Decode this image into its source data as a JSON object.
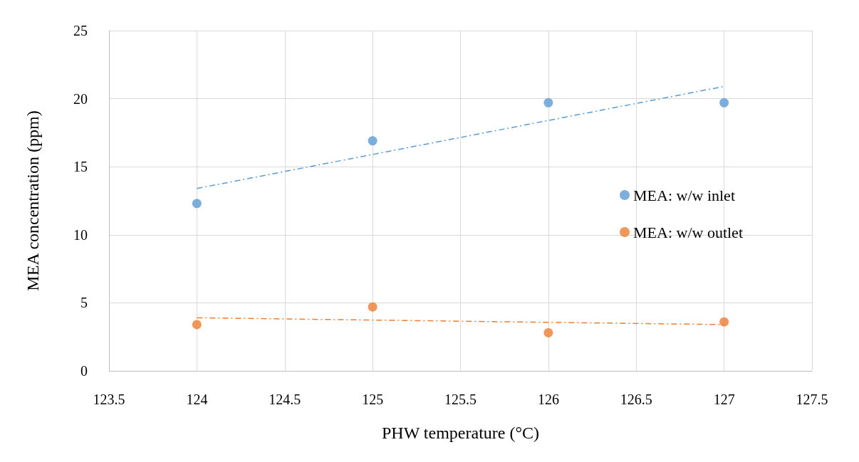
{
  "chart_data": {
    "type": "scatter",
    "xlabel": "PHW temperature (°C)",
    "ylabel": "MEA concentration (ppm)",
    "xlim": [
      123.5,
      127.5
    ],
    "xticks": [
      123.5,
      124,
      124.5,
      125,
      125.5,
      126,
      126.5,
      127,
      127.5
    ],
    "ylim": [
      0,
      25
    ],
    "yticks": [
      0,
      5,
      10,
      15,
      20,
      25
    ],
    "grid": true,
    "legend": "right",
    "marker": "circle",
    "series": [
      {
        "name": "MEA: w/w inlet",
        "color": "#5b9bd5",
        "x": [
          124,
          125,
          126,
          127
        ],
        "values": [
          12.3,
          16.9,
          19.7,
          19.7
        ]
      },
      {
        "name": "MEA: w/w outlet",
        "color": "#ed7d31",
        "x": [
          124,
          125,
          126,
          127
        ],
        "values": [
          3.4,
          4.7,
          2.8,
          3.6
        ]
      },
      {
        "type": "line",
        "color": "#5b9bd5",
        "line_style": "dashed",
        "marker": "none",
        "x": [
          124,
          127
        ],
        "values": [
          13.4,
          20.9
        ]
      },
      {
        "type": "line",
        "color": "#ed7d31",
        "line_style": "dashed",
        "marker": "none",
        "x": [
          124,
          127
        ],
        "values": [
          3.9,
          3.4
        ]
      }
    ]
  }
}
